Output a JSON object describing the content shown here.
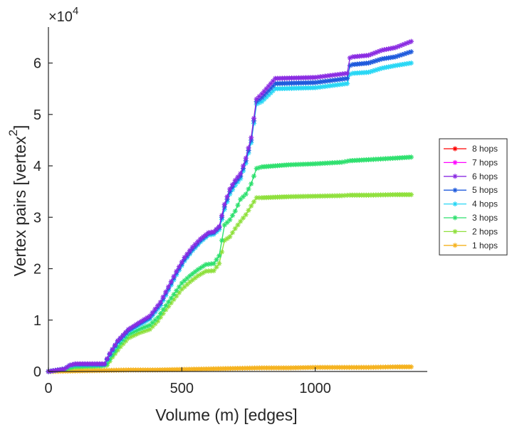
{
  "chart_data": {
    "type": "line",
    "title": "",
    "xlabel": "Volume (m) [edges]",
    "ylabel_main": "Vertex pairs [vertex",
    "ylabel_superscript": "2",
    "ylabel_close": "]",
    "y_exponent_base": "×10",
    "y_exponent_power": "4",
    "xlim": [
      0,
      1420
    ],
    "ylim": [
      0,
      6.7
    ],
    "xticks": [
      0,
      500,
      1000
    ],
    "xtick_labels": [
      "0",
      "500",
      "1000"
    ],
    "yticks": [
      0,
      1,
      2,
      3,
      4,
      5,
      6
    ],
    "ytick_labels": [
      "0",
      "1",
      "2",
      "3",
      "4",
      "5",
      "6"
    ],
    "legend_position": "right",
    "marker": "asterisk",
    "series": [
      {
        "name": "8 hops",
        "color": "#ff0000",
        "visible": false,
        "x": [
          0,
          60,
          80,
          100,
          210,
          230,
          260,
          300,
          340,
          380,
          420,
          450,
          480,
          510,
          540,
          570,
          600,
          620,
          640,
          660,
          680,
          700,
          720,
          740,
          760,
          780,
          800,
          850,
          1000,
          1120,
          1130,
          1140,
          1200,
          1250,
          1300,
          1360
        ],
        "y": [
          0,
          0.05,
          0.12,
          0.15,
          0.15,
          0.35,
          0.6,
          0.82,
          0.95,
          1.08,
          1.35,
          1.65,
          1.95,
          2.22,
          2.42,
          2.58,
          2.7,
          2.72,
          2.82,
          3.25,
          3.55,
          3.72,
          3.85,
          4.15,
          4.55,
          5.3,
          5.4,
          5.7,
          5.72,
          5.8,
          6.1,
          6.12,
          6.15,
          6.25,
          6.3,
          6.42
        ]
      },
      {
        "name": "7 hops",
        "color": "#ff00ff",
        "visible": false,
        "x": [
          0,
          60,
          80,
          100,
          210,
          230,
          260,
          300,
          340,
          380,
          420,
          450,
          480,
          510,
          540,
          570,
          600,
          620,
          640,
          660,
          680,
          700,
          720,
          740,
          760,
          780,
          800,
          850,
          1000,
          1120,
          1130,
          1140,
          1200,
          1250,
          1300,
          1360
        ],
        "y": [
          0,
          0.05,
          0.12,
          0.15,
          0.15,
          0.35,
          0.6,
          0.82,
          0.95,
          1.08,
          1.35,
          1.65,
          1.95,
          2.22,
          2.42,
          2.58,
          2.7,
          2.72,
          2.82,
          3.25,
          3.55,
          3.72,
          3.85,
          4.15,
          4.55,
          5.3,
          5.4,
          5.7,
          5.72,
          5.8,
          6.1,
          6.12,
          6.15,
          6.25,
          6.3,
          6.42
        ]
      },
      {
        "name": "6 hops",
        "color": "#8a2be2",
        "visible": true,
        "x": [
          0,
          60,
          80,
          100,
          210,
          230,
          260,
          300,
          340,
          380,
          420,
          450,
          480,
          510,
          540,
          570,
          600,
          620,
          640,
          660,
          680,
          700,
          720,
          740,
          760,
          780,
          800,
          850,
          1000,
          1120,
          1130,
          1140,
          1200,
          1250,
          1300,
          1360
        ],
        "y": [
          0,
          0.05,
          0.12,
          0.15,
          0.15,
          0.35,
          0.6,
          0.82,
          0.95,
          1.08,
          1.35,
          1.65,
          1.95,
          2.22,
          2.42,
          2.58,
          2.7,
          2.72,
          2.82,
          3.25,
          3.55,
          3.72,
          3.85,
          4.15,
          4.55,
          5.3,
          5.4,
          5.7,
          5.72,
          5.8,
          6.1,
          6.12,
          6.15,
          6.25,
          6.3,
          6.42
        ]
      },
      {
        "name": "5 hops",
        "color": "#1e5adc",
        "visible": true,
        "x": [
          0,
          60,
          80,
          100,
          210,
          230,
          260,
          300,
          340,
          380,
          420,
          450,
          480,
          510,
          540,
          570,
          600,
          620,
          640,
          660,
          680,
          700,
          720,
          740,
          760,
          780,
          800,
          850,
          1000,
          1120,
          1130,
          1140,
          1200,
          1250,
          1300,
          1360
        ],
        "y": [
          0,
          0.05,
          0.12,
          0.14,
          0.14,
          0.33,
          0.58,
          0.8,
          0.93,
          1.05,
          1.32,
          1.62,
          1.92,
          2.18,
          2.38,
          2.55,
          2.68,
          2.7,
          2.8,
          3.2,
          3.5,
          3.68,
          3.8,
          4.1,
          4.5,
          5.25,
          5.33,
          5.6,
          5.62,
          5.7,
          5.95,
          5.97,
          6.0,
          6.08,
          6.12,
          6.22
        ]
      },
      {
        "name": "4 hops",
        "color": "#28d7f5",
        "visible": true,
        "x": [
          0,
          60,
          80,
          100,
          210,
          230,
          260,
          300,
          340,
          380,
          420,
          450,
          480,
          510,
          540,
          570,
          600,
          620,
          640,
          660,
          680,
          700,
          720,
          740,
          760,
          780,
          800,
          850,
          1000,
          1120,
          1130,
          1140,
          1200,
          1250,
          1300,
          1360
        ],
        "y": [
          0,
          0.05,
          0.11,
          0.13,
          0.13,
          0.32,
          0.56,
          0.78,
          0.9,
          1.02,
          1.28,
          1.58,
          1.88,
          2.15,
          2.35,
          2.52,
          2.65,
          2.67,
          2.76,
          3.15,
          3.45,
          3.62,
          3.75,
          4.05,
          4.45,
          5.2,
          5.25,
          5.5,
          5.52,
          5.6,
          5.78,
          5.8,
          5.82,
          5.9,
          5.95,
          6.0
        ]
      },
      {
        "name": "3 hops",
        "color": "#2ee06e",
        "visible": true,
        "x": [
          0,
          60,
          100,
          200,
          220,
          240,
          270,
          300,
          340,
          380,
          410,
          440,
          470,
          500,
          530,
          560,
          590,
          620,
          640,
          660,
          680,
          700,
          720,
          740,
          760,
          780,
          800,
          850,
          900,
          1000,
          1100,
          1130,
          1200,
          1300,
          1360
        ],
        "y": [
          0,
          0.05,
          0.1,
          0.12,
          0.15,
          0.32,
          0.55,
          0.72,
          0.82,
          0.9,
          1.05,
          1.28,
          1.5,
          1.72,
          1.86,
          1.98,
          2.08,
          2.1,
          2.25,
          2.85,
          2.95,
          3.12,
          3.35,
          3.45,
          3.65,
          3.95,
          3.98,
          4.0,
          4.02,
          4.04,
          4.07,
          4.1,
          4.12,
          4.15,
          4.17
        ]
      },
      {
        "name": "2 hops",
        "color": "#8fe03c",
        "visible": true,
        "x": [
          0,
          60,
          100,
          200,
          220,
          240,
          270,
          300,
          340,
          380,
          410,
          440,
          470,
          500,
          530,
          560,
          590,
          620,
          640,
          660,
          680,
          700,
          720,
          740,
          760,
          780,
          800,
          850,
          900,
          1000,
          1100,
          1130,
          1200,
          1300,
          1360
        ],
        "y": [
          0,
          0.04,
          0.08,
          0.1,
          0.12,
          0.28,
          0.48,
          0.65,
          0.75,
          0.82,
          0.98,
          1.2,
          1.4,
          1.6,
          1.74,
          1.86,
          1.95,
          1.96,
          2.1,
          2.55,
          2.62,
          2.78,
          2.92,
          3.05,
          3.22,
          3.38,
          3.38,
          3.39,
          3.4,
          3.41,
          3.42,
          3.43,
          3.43,
          3.44,
          3.44
        ]
      },
      {
        "name": "1 hops",
        "color": "#f5b21e",
        "visible": true,
        "x": [
          0,
          100,
          200,
          300,
          400,
          500,
          600,
          700,
          800,
          900,
          1000,
          1100,
          1200,
          1300,
          1360
        ],
        "y": [
          0,
          0.01,
          0.02,
          0.03,
          0.03,
          0.04,
          0.05,
          0.06,
          0.07,
          0.07,
          0.08,
          0.08,
          0.08,
          0.09,
          0.09
        ]
      }
    ]
  }
}
